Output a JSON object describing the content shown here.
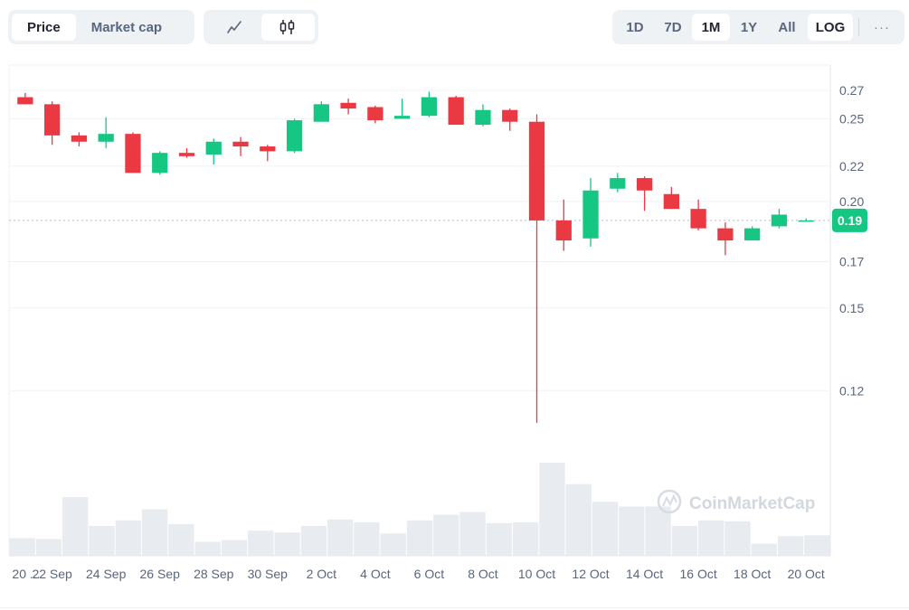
{
  "toolbar": {
    "metric_tabs": [
      {
        "label": "Price",
        "active": true
      },
      {
        "label": "Market cap",
        "active": false
      }
    ],
    "chart_type_buttons": [
      {
        "icon": "line-chart-icon",
        "active": false
      },
      {
        "icon": "candlestick-icon",
        "active": true
      }
    ],
    "range_tabs": [
      {
        "label": "1D",
        "active": false
      },
      {
        "label": "7D",
        "active": false
      },
      {
        "label": "1M",
        "active": true
      },
      {
        "label": "1Y",
        "active": false
      },
      {
        "label": "All",
        "active": false
      }
    ],
    "log_label": "LOG",
    "more_label": "···"
  },
  "watermark": "CoinMarketCap",
  "colors": {
    "up": "#16c784",
    "down": "#ea3943",
    "volume": "#e8ebef",
    "grid": "#eff2f5",
    "text": "#58667e"
  },
  "chart_data": {
    "type": "candlestick",
    "y_scale": "log",
    "ylim": [
      0.105,
      0.289
    ],
    "y_ticks": [
      0.27,
      0.25,
      0.22,
      0.2,
      0.17,
      0.15,
      0.12
    ],
    "y_tick_labels": [
      "0.27",
      "0.25",
      "0.22",
      "0.20",
      "0.17",
      "0.15",
      "0.12"
    ],
    "current_price": 0.19,
    "current_price_label": "0.19",
    "x_tick_labels": [
      "20 ...",
      "22 Sep",
      "24 Sep",
      "26 Sep",
      "28 Sep",
      "30 Sep",
      "2 Oct",
      "4 Oct",
      "6 Oct",
      "8 Oct",
      "10 Oct",
      "12 Oct",
      "14 Oct",
      "16 Oct",
      "18 Oct",
      "20 Oct"
    ],
    "candles": [
      {
        "date": "21 Sep",
        "open": 0.265,
        "high": 0.268,
        "low": 0.26,
        "close": 0.26
      },
      {
        "date": "22 Sep",
        "open": 0.26,
        "high": 0.262,
        "low": 0.233,
        "close": 0.239
      },
      {
        "date": "23 Sep",
        "open": 0.239,
        "high": 0.241,
        "low": 0.232,
        "close": 0.235
      },
      {
        "date": "24 Sep",
        "open": 0.235,
        "high": 0.251,
        "low": 0.231,
        "close": 0.24
      },
      {
        "date": "25 Sep",
        "open": 0.24,
        "high": 0.241,
        "low": 0.216,
        "close": 0.216
      },
      {
        "date": "26 Sep",
        "open": 0.216,
        "high": 0.229,
        "low": 0.215,
        "close": 0.228
      },
      {
        "date": "27 Sep",
        "open": 0.228,
        "high": 0.231,
        "low": 0.225,
        "close": 0.226
      },
      {
        "date": "28 Sep",
        "open": 0.227,
        "high": 0.237,
        "low": 0.221,
        "close": 0.235
      },
      {
        "date": "29 Sep",
        "open": 0.235,
        "high": 0.238,
        "low": 0.226,
        "close": 0.232
      },
      {
        "date": "30 Sep",
        "open": 0.232,
        "high": 0.233,
        "low": 0.223,
        "close": 0.229
      },
      {
        "date": "1 Oct",
        "open": 0.229,
        "high": 0.25,
        "low": 0.228,
        "close": 0.249
      },
      {
        "date": "2 Oct",
        "open": 0.248,
        "high": 0.262,
        "low": 0.248,
        "close": 0.26
      },
      {
        "date": "3 Oct",
        "open": 0.261,
        "high": 0.264,
        "low": 0.253,
        "close": 0.257
      },
      {
        "date": "4 Oct",
        "open": 0.258,
        "high": 0.259,
        "low": 0.247,
        "close": 0.249
      },
      {
        "date": "5 Oct",
        "open": 0.25,
        "high": 0.264,
        "low": 0.25,
        "close": 0.252
      },
      {
        "date": "6 Oct",
        "open": 0.252,
        "high": 0.269,
        "low": 0.251,
        "close": 0.265
      },
      {
        "date": "7 Oct",
        "open": 0.265,
        "high": 0.266,
        "low": 0.246,
        "close": 0.246
      },
      {
        "date": "8 Oct",
        "open": 0.246,
        "high": 0.26,
        "low": 0.245,
        "close": 0.256
      },
      {
        "date": "9 Oct",
        "open": 0.256,
        "high": 0.257,
        "low": 0.242,
        "close": 0.248
      },
      {
        "date": "10 Oct",
        "open": 0.248,
        "high": 0.253,
        "low": 0.11,
        "close": 0.19
      },
      {
        "date": "11 Oct",
        "open": 0.19,
        "high": 0.201,
        "low": 0.175,
        "close": 0.18
      },
      {
        "date": "12 Oct",
        "open": 0.181,
        "high": 0.213,
        "low": 0.177,
        "close": 0.206
      },
      {
        "date": "13 Oct",
        "open": 0.207,
        "high": 0.216,
        "low": 0.205,
        "close": 0.213
      },
      {
        "date": "14 Oct",
        "open": 0.213,
        "high": 0.214,
        "low": 0.195,
        "close": 0.206
      },
      {
        "date": "15 Oct",
        "open": 0.204,
        "high": 0.208,
        "low": 0.196,
        "close": 0.196
      },
      {
        "date": "16 Oct",
        "open": 0.196,
        "high": 0.201,
        "low": 0.185,
        "close": 0.186
      },
      {
        "date": "17 Oct",
        "open": 0.186,
        "high": 0.189,
        "low": 0.173,
        "close": 0.18
      },
      {
        "date": "18 Oct",
        "open": 0.18,
        "high": 0.187,
        "low": 0.18,
        "close": 0.186
      },
      {
        "date": "19 Oct",
        "open": 0.187,
        "high": 0.196,
        "low": 0.186,
        "close": 0.193
      },
      {
        "date": "20 Oct",
        "open": 0.19,
        "high": 0.191,
        "low": 0.19,
        "close": 0.19
      }
    ],
    "volume_relative": [
      19,
      18,
      63,
      32,
      38,
      50,
      34,
      15,
      17,
      27,
      25,
      32,
      39,
      36,
      24,
      38,
      44,
      47,
      35,
      36,
      100,
      77,
      58,
      53,
      53,
      32,
      38,
      37,
      13,
      21,
      22
    ]
  }
}
